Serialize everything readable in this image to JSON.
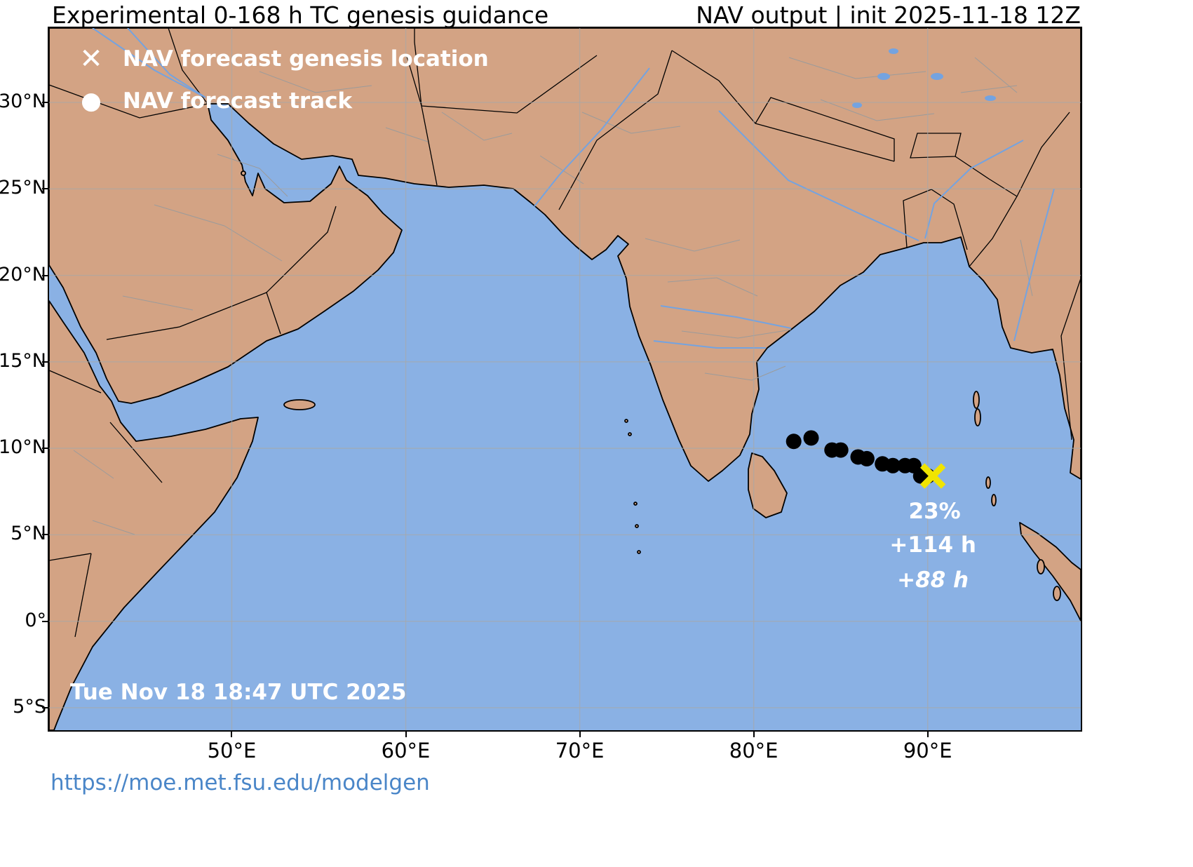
{
  "header": {
    "title": "Experimental 0-168 h TC genesis guidance",
    "model_info": "NAV output | init 2025-11-18 12Z"
  },
  "legend": {
    "genesis_icon": "✕",
    "genesis_label": "NAV forecast genesis location",
    "track_icon": "●",
    "track_label": "NAV forecast track"
  },
  "map": {
    "timestamp": "Tue Nov 18 18:47 UTC 2025",
    "bounds": {
      "lon_min": 39.5,
      "lon_max": 98.8,
      "lat_min": -6.3,
      "lat_max": 34.3
    },
    "lat_ticks": [
      {
        "label": "30°N",
        "value": 30
      },
      {
        "label": "25°N",
        "value": 25
      },
      {
        "label": "20°N",
        "value": 20
      },
      {
        "label": "15°N",
        "value": 15
      },
      {
        "label": "10°N",
        "value": 10
      },
      {
        "label": "5°N",
        "value": 5
      },
      {
        "label": "0°",
        "value": 0
      },
      {
        "label": "5°S",
        "value": -5
      }
    ],
    "lon_ticks": [
      {
        "label": "50°E",
        "value": 50
      },
      {
        "label": "60°E",
        "value": 60
      },
      {
        "label": "70°E",
        "value": 70
      },
      {
        "label": "80°E",
        "value": 80
      },
      {
        "label": "90°E",
        "value": 90
      }
    ],
    "annotations": [
      {
        "text": "23%",
        "lon": 90.4,
        "lat": 6.35,
        "italic": false
      },
      {
        "text": "+114 h",
        "lon": 90.3,
        "lat": 4.4,
        "italic": false
      },
      {
        "text": "+88 h",
        "lon": 90.3,
        "lat": 2.4,
        "italic": true
      }
    ],
    "colors": {
      "ocean": "#8ab1e4",
      "land": "#d3a384",
      "coast": "#000000",
      "admin": "#9b9b9b",
      "grid": "#a8a8a8",
      "water": "#74a3e0",
      "track": "#000000",
      "genesis": "#f0e400",
      "overlay_text": "#ffffff",
      "link": "#4a86c8",
      "text": "#000000"
    }
  },
  "chart_data": {
    "type": "scatter",
    "title": "Experimental 0-168 h TC genesis guidance",
    "x_range": [
      39.5,
      98.8
    ],
    "y_range": [
      -6.3,
      34.3
    ],
    "series": [
      {
        "name": "NAV forecast track",
        "points": [
          [
            82.3,
            10.4
          ],
          [
            83.3,
            10.6
          ],
          [
            84.5,
            9.9
          ],
          [
            85.0,
            9.9
          ],
          [
            86.0,
            9.5
          ],
          [
            86.5,
            9.4
          ],
          [
            87.4,
            9.1
          ],
          [
            88.0,
            9.0
          ],
          [
            88.7,
            9.0
          ],
          [
            89.2,
            9.0
          ],
          [
            89.6,
            8.4
          ],
          [
            90.0,
            8.4
          ]
        ]
      },
      {
        "name": "NAV forecast genesis location",
        "points": [
          [
            90.3,
            8.4
          ]
        ]
      }
    ],
    "genesis_probability": "23%",
    "genesis_lead_time": "+114 h",
    "track_end_lead_time": "+88 h"
  },
  "footer": {
    "link": "https://moe.met.fsu.edu/modelgen"
  }
}
